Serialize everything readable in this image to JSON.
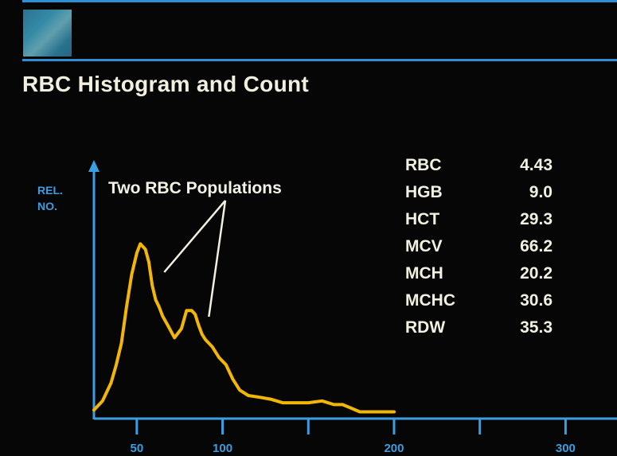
{
  "header": {
    "title": "RBC Histogram and Count"
  },
  "colors": {
    "accent": "#2f8fd6",
    "curve": "#f2b705",
    "text": "#f2f0e0",
    "axis": "#3c9ee0"
  },
  "chart_data": {
    "type": "line",
    "title": "RBC Histogram and Count",
    "ylabel": [
      "REL.",
      "NO."
    ],
    "xlabel": "",
    "x_ticks": [
      {
        "value": 50,
        "label": "50"
      },
      {
        "value": 100,
        "label": "100"
      },
      {
        "value": 150,
        "label": ""
      },
      {
        "value": 200,
        "label": "200"
      },
      {
        "value": 250,
        "label": ""
      },
      {
        "value": 300,
        "label": "300"
      }
    ],
    "xlim": [
      25,
      330
    ],
    "ylim": [
      0,
      100
    ],
    "annotation": {
      "text": "Two RBC Populations",
      "pointer_targets_x": [
        66,
        92
      ]
    },
    "series": [
      {
        "x": [
          25,
          30,
          35,
          38,
          41,
          44,
          47,
          50,
          52,
          55,
          57,
          59,
          61,
          63,
          65,
          68,
          72,
          76,
          79,
          82,
          84,
          86,
          88,
          90,
          94,
          98,
          102,
          106,
          110,
          115,
          122,
          128,
          135,
          142,
          150,
          158,
          165,
          170,
          175,
          180,
          186,
          190,
          195,
          200
        ],
        "y": [
          3,
          8,
          18,
          28,
          40,
          60,
          78,
          90,
          95,
          92,
          85,
          72,
          64,
          60,
          55,
          50,
          43,
          48,
          58,
          58,
          56,
          50,
          45,
          42,
          38,
          32,
          28,
          20,
          14,
          11,
          10,
          9,
          7,
          7,
          7,
          8,
          6,
          6,
          4,
          2,
          2,
          2,
          2,
          2
        ]
      }
    ],
    "grid": false
  },
  "indices": [
    {
      "name": "RBC",
      "value": "4.43"
    },
    {
      "name": "HGB",
      "value": "9.0"
    },
    {
      "name": "HCT",
      "value": "29.3"
    },
    {
      "name": "MCV",
      "value": "66.2"
    },
    {
      "name": "MCH",
      "value": "20.2"
    },
    {
      "name": "MCHC",
      "value": "30.6"
    },
    {
      "name": "RDW",
      "value": "35.3"
    }
  ]
}
